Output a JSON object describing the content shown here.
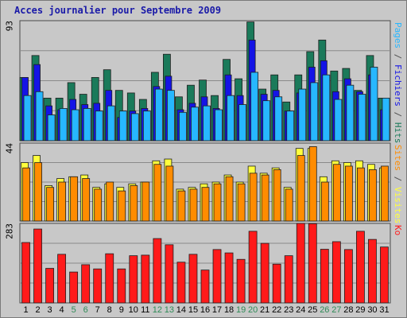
{
  "chart_data": {
    "type": "bar",
    "title": "Acces journalier pour Septembre 2009",
    "categories": [
      "1",
      "2",
      "3",
      "4",
      "5",
      "6",
      "7",
      "8",
      "9",
      "10",
      "11",
      "12",
      "13",
      "14",
      "15",
      "16",
      "17",
      "18",
      "19",
      "20",
      "21",
      "22",
      "23",
      "24",
      "25",
      "26",
      "27",
      "28",
      "29",
      "30",
      "31"
    ],
    "weekend_days": [
      "5",
      "6",
      "12",
      "13",
      "19",
      "20",
      "26",
      "27"
    ],
    "colors": {
      "title": "#1a1aa8",
      "weekday_label": "#000000",
      "weekend_label": "#2e8b57",
      "pages": "#27b7ff",
      "fichiers": "#1414e6",
      "hits": "#1a7a5a",
      "visites": "#ffff3c",
      "sites": "#ff8c00",
      "ko": "#ff1a1a",
      "panel_bg": "#c8c8c8",
      "gridline": "#8a8a8a"
    },
    "panels": [
      {
        "name": "top",
        "max_label": "93",
        "right_label_parts": [
          {
            "text": "Pages",
            "color": "#27b7ff"
          },
          {
            "text": " / ",
            "color": "#505050"
          },
          {
            "text": "Fichiers",
            "color": "#1414e6"
          },
          {
            "text": " / ",
            "color": "#505050"
          },
          {
            "text": "Hits",
            "color": "#1a7a5a"
          }
        ],
        "ylim": [
          0,
          93
        ],
        "series": [
          {
            "name": "Hits",
            "key": "hits",
            "values": [
              49,
              66,
              33,
              33,
              45,
              36,
              49,
              55,
              39,
              37,
              32,
              53,
              67,
              34,
              43,
              47,
              35,
              63,
              48,
              92,
              40,
              51,
              30,
              51,
              69,
              78,
              54,
              56,
              39,
              66,
              33
            ]
          },
          {
            "name": "Fichiers",
            "key": "fichiers",
            "values": [
              49,
              59,
              27,
              24,
              32,
              28,
              29,
              39,
              18,
              23,
              25,
              42,
              50,
              24,
              29,
              34,
              25,
              51,
              35,
              78,
              36,
              39,
              23,
              37,
              57,
              62,
              38,
              48,
              38,
              51,
              24
            ]
          },
          {
            "name": "Pages",
            "key": "pages",
            "values": [
              35,
              38,
              20,
              25,
              24,
              25,
              23,
              27,
              23,
              21,
              23,
              40,
              39,
              22,
              26,
              27,
              24,
              35,
              28,
              53,
              31,
              34,
              23,
              40,
              45,
              51,
              32,
              43,
              36,
              57,
              33
            ]
          }
        ]
      },
      {
        "name": "middle",
        "max_label": "44",
        "right_label_parts": [
          {
            "text": "Sites",
            "color": "#ff8c00"
          },
          {
            "text": " / ",
            "color": "#505050"
          },
          {
            "text": "Visites",
            "color": "#ffff3c"
          }
        ],
        "ylim": [
          0,
          44
        ],
        "series": [
          {
            "name": "Visites",
            "key": "visites",
            "values": [
              33,
              37,
              20,
              24,
              25,
              26,
              19,
              21,
              19,
              21,
              22,
              34,
              35,
              18,
              19,
              21,
              22,
              26,
              22,
              31,
              27,
              30,
              19,
              41,
              41,
              25,
              34,
              33,
              34,
              32,
              30
            ]
          },
          {
            "name": "Sites",
            "key": "sites",
            "values": [
              30,
              33,
              19,
              22,
              25,
              24,
              18,
              22,
              17,
              20,
              22,
              32,
              31,
              17,
              18,
              19,
              21,
              25,
              21,
              27,
              26,
              29,
              18,
              37,
              42,
              22,
              32,
              31,
              30,
              29,
              31
            ]
          }
        ]
      },
      {
        "name": "bottom",
        "max_label": "283",
        "right_label_parts": [
          {
            "text": "Ko",
            "color": "#ff1a1a"
          }
        ],
        "ylim": [
          0,
          283
        ],
        "series": [
          {
            "name": "Ko",
            "key": "ko",
            "values": [
              215,
              263,
              123,
              173,
              110,
              136,
              121,
              175,
              121,
              168,
              170,
              229,
              207,
              145,
              173,
              117,
              190,
              178,
              155,
              255,
              212,
              138,
              168,
              283,
              282,
              191,
              218,
              190,
              255,
              226,
              199
            ]
          }
        ]
      }
    ]
  }
}
